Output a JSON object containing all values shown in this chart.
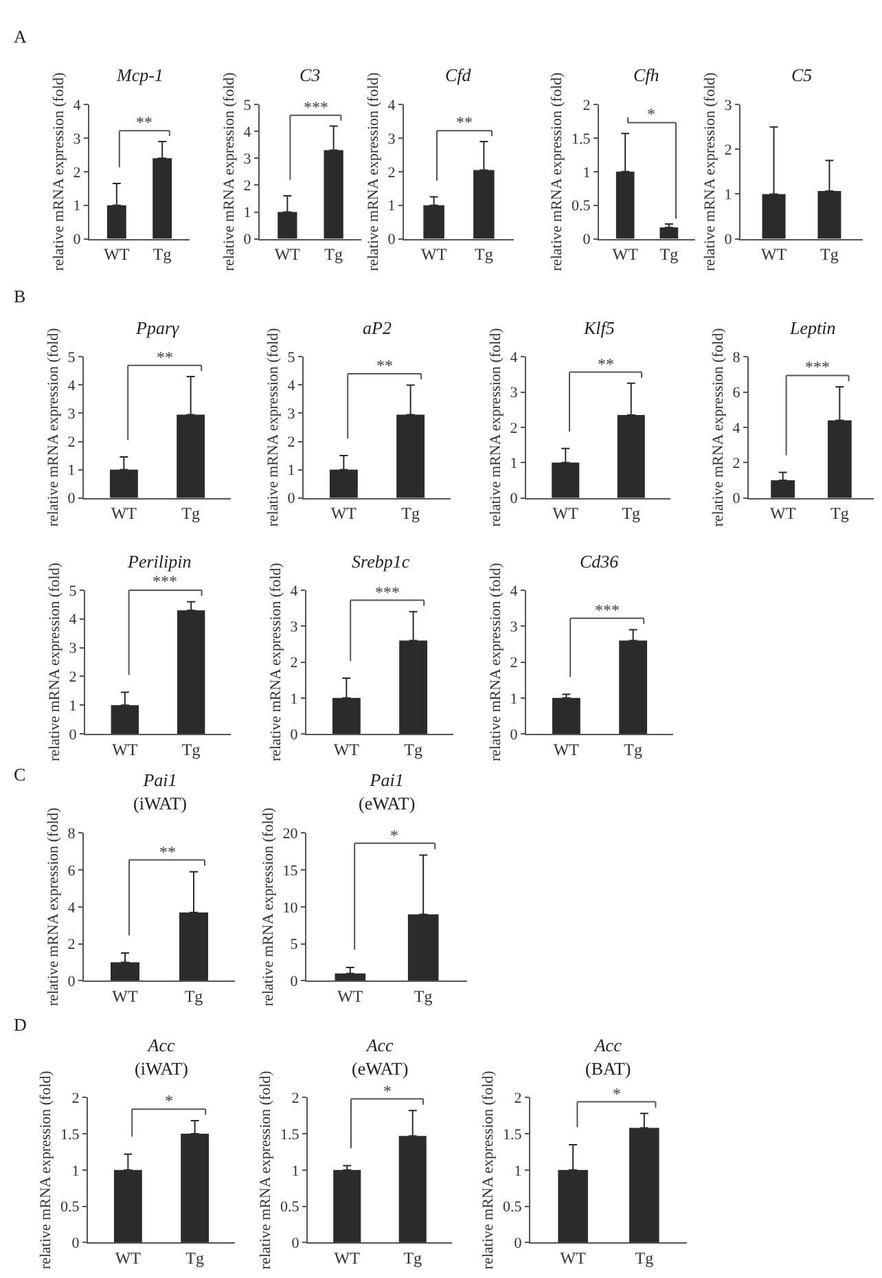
{
  "chart_data": [
    {
      "type": "bar",
      "title": "Mcp-1",
      "ylabel": "relative mRNA expression (fold)",
      "categories": [
        "WT",
        "Tg"
      ],
      "values": [
        1,
        2.4
      ],
      "errors": [
        [
          1,
          1.65
        ],
        [
          2.4,
          2.9
        ]
      ],
      "color": "#2b2b2e",
      "ylim": [
        0,
        4
      ],
      "yticks": [
        0,
        1,
        2,
        3,
        4
      ],
      "annotations": [
        "A",
        "**"
      ]
    },
    {
      "type": "bar",
      "title": "C3",
      "ylabel": "relative mRNA expression (fold)",
      "categories": [
        "WT",
        "Tg"
      ],
      "values": [
        1,
        3.3
      ],
      "errors": [
        [
          1,
          1.6
        ],
        [
          3.3,
          4.2
        ]
      ],
      "color": "#2b2b2e",
      "ylim": [
        0,
        5
      ],
      "yticks": [
        0,
        1,
        2,
        3,
        4,
        5
      ],
      "annotations": [
        "***"
      ]
    },
    {
      "type": "bar",
      "title": "Cfd",
      "ylabel": "relative mRNA expression (fold)",
      "categories": [
        "WT",
        "Tg"
      ],
      "values": [
        1,
        2.05
      ],
      "errors": [
        [
          1,
          1.25
        ],
        [
          2.05,
          2.9
        ]
      ],
      "color": "#2b2b2e",
      "ylim": [
        0,
        4
      ],
      "yticks": [
        0,
        1,
        2,
        3,
        4
      ],
      "annotations": [
        "**"
      ]
    },
    {
      "type": "bar",
      "title": "Cfh",
      "ylabel": "relative mRNA expression (fold)",
      "categories": [
        "WT",
        "Tg"
      ],
      "values": [
        1,
        0.17
      ],
      "errors": [
        [
          1,
          1.57
        ],
        [
          0.17,
          0.22
        ]
      ],
      "color": "#2b2b2e",
      "ylim": [
        0,
        2
      ],
      "yticks": [
        0,
        0.5,
        1,
        1.5,
        2
      ],
      "annotations": [
        "*"
      ]
    },
    {
      "type": "bar",
      "title": "C5",
      "ylabel": "relative mRNA expression (fold)",
      "categories": [
        "WT",
        "Tg"
      ],
      "values": [
        1,
        1.07
      ],
      "errors": [
        [
          1,
          2.5
        ],
        [
          1.07,
          1.75
        ]
      ],
      "color": "#2b2b2e",
      "ylim": [
        0,
        3
      ],
      "yticks": [
        0,
        1,
        2,
        3
      ]
    },
    {
      "type": "bar",
      "title": "Pparγ",
      "ylabel": "relative mRNA expression (fold)",
      "categories": [
        "WT",
        "Tg"
      ],
      "values": [
        1,
        2.95
      ],
      "errors": [
        [
          1,
          1.45
        ],
        [
          2.95,
          4.3
        ]
      ],
      "color": "#2b2b2e",
      "ylim": [
        0,
        5
      ],
      "yticks": [
        0,
        1,
        2,
        3,
        4,
        5
      ],
      "annotations": [
        "B",
        "**"
      ]
    },
    {
      "type": "bar",
      "title": "aP2",
      "ylabel": "relative mRNA expression (fold)",
      "categories": [
        "WT",
        "Tg"
      ],
      "values": [
        1,
        2.95
      ],
      "errors": [
        [
          1,
          1.5
        ],
        [
          2.95,
          4.0
        ]
      ],
      "color": "#2b2b2e",
      "ylim": [
        0,
        5
      ],
      "yticks": [
        0,
        1,
        2,
        3,
        4,
        5
      ],
      "annotations": [
        "**"
      ]
    },
    {
      "type": "bar",
      "title": "Klf5",
      "ylabel": "relative mRNA expression (fold)",
      "categories": [
        "WT",
        "Tg"
      ],
      "values": [
        1,
        2.35
      ],
      "errors": [
        [
          1,
          1.4
        ],
        [
          2.35,
          3.25
        ]
      ],
      "color": "#2b2b2e",
      "ylim": [
        0,
        4
      ],
      "yticks": [
        0,
        1,
        2,
        3,
        4
      ],
      "annotations": [
        "**"
      ]
    },
    {
      "type": "bar",
      "title": "Leptin",
      "ylabel": "relative mRNA expression (fold)",
      "categories": [
        "WT",
        "Tg"
      ],
      "values": [
        1,
        4.4
      ],
      "errors": [
        [
          1,
          1.45
        ],
        [
          4.4,
          6.3
        ]
      ],
      "color": "#2b2b2e",
      "ylim": [
        0,
        8
      ],
      "yticks": [
        0,
        2,
        4,
        6,
        8
      ],
      "annotations": [
        "***"
      ]
    },
    {
      "type": "bar",
      "title": "Perilipin",
      "ylabel": "relative mRNA expression (fold)",
      "categories": [
        "WT",
        "Tg"
      ],
      "values": [
        1,
        4.3
      ],
      "errors": [
        [
          1,
          1.45
        ],
        [
          4.3,
          4.6
        ]
      ],
      "color": "#2b2b2e",
      "ylim": [
        0,
        5
      ],
      "yticks": [
        0,
        1,
        2,
        3,
        4,
        5
      ],
      "annotations": [
        "***"
      ]
    },
    {
      "type": "bar",
      "title": "Srebp1c",
      "ylabel": "relative mRNA expression (fold)",
      "categories": [
        "WT",
        "Tg"
      ],
      "values": [
        1,
        2.6
      ],
      "errors": [
        [
          1,
          1.55
        ],
        [
          2.6,
          3.4
        ]
      ],
      "color": "#2b2b2e",
      "ylim": [
        0,
        4
      ],
      "yticks": [
        0,
        1,
        2,
        3,
        4
      ],
      "annotations": [
        "***"
      ]
    },
    {
      "type": "bar",
      "title": "Cd36",
      "ylabel": "relative mRNA expression (fold)",
      "categories": [
        "WT",
        "Tg"
      ],
      "values": [
        1,
        2.6
      ],
      "errors": [
        [
          1,
          1.1
        ],
        [
          2.6,
          2.9
        ]
      ],
      "color": "#2b2b2e",
      "ylim": [
        0,
        4
      ],
      "yticks": [
        0,
        1,
        2,
        3,
        4
      ],
      "annotations": [
        "***"
      ]
    },
    {
      "type": "bar",
      "title": "Pai1",
      "subtitle": "(iWAT)",
      "ylabel": "relative mRNA expression (fold)",
      "categories": [
        "WT",
        "Tg"
      ],
      "values": [
        1,
        3.7
      ],
      "errors": [
        [
          1,
          1.5
        ],
        [
          3.7,
          5.9
        ]
      ],
      "color": "#2b2b2e",
      "ylim": [
        0,
        8
      ],
      "yticks": [
        0,
        2,
        4,
        6,
        8
      ],
      "annotations": [
        "C",
        "**"
      ]
    },
    {
      "type": "bar",
      "title": "Pai1",
      "subtitle": "(eWAT)",
      "ylabel": "relative mRNA expression (fold)",
      "categories": [
        "WT",
        "Tg"
      ],
      "values": [
        1,
        9
      ],
      "errors": [
        [
          1,
          1.8
        ],
        [
          9,
          17
        ]
      ],
      "color": "#2b2b2e",
      "ylim": [
        0,
        20
      ],
      "yticks": [
        0,
        5,
        10,
        15,
        20
      ],
      "annotations": [
        "*"
      ]
    },
    {
      "type": "bar",
      "title": "Acc",
      "subtitle": "(iWAT)",
      "ylabel": "relative mRNA expression (fold)",
      "categories": [
        "WT",
        "Tg"
      ],
      "values": [
        1,
        1.5
      ],
      "errors": [
        [
          1,
          1.22
        ],
        [
          1.5,
          1.68
        ]
      ],
      "color": "#2b2b2e",
      "ylim": [
        0,
        2
      ],
      "yticks": [
        0,
        0.5,
        1,
        1.5,
        2
      ],
      "annotations": [
        "D",
        "*"
      ]
    },
    {
      "type": "bar",
      "title": "Acc",
      "subtitle": "(eWAT)",
      "ylabel": "relative mRNA expression (fold)",
      "categories": [
        "WT",
        "Tg"
      ],
      "values": [
        1,
        1.47
      ],
      "errors": [
        [
          1,
          1.06
        ],
        [
          1.47,
          1.82
        ]
      ],
      "color": "#2b2b2e",
      "ylim": [
        0,
        2
      ],
      "yticks": [
        0,
        0.5,
        1,
        1.5,
        2
      ],
      "annotations": [
        "*"
      ]
    },
    {
      "type": "bar",
      "title": "Acc",
      "subtitle": "(BAT)",
      "ylabel": "relative mRNA expression (fold)",
      "categories": [
        "WT",
        "Tg"
      ],
      "values": [
        1,
        1.58
      ],
      "errors": [
        [
          1,
          1.35
        ],
        [
          1.58,
          1.78
        ]
      ],
      "color": "#2b2b2e",
      "ylim": [
        0,
        2
      ],
      "yticks": [
        0,
        0.5,
        1,
        1.5,
        2
      ],
      "annotations": [
        "*"
      ]
    }
  ]
}
